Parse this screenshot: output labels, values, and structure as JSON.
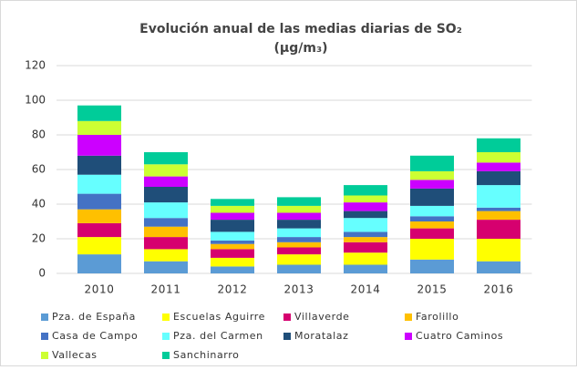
{
  "chart_data": {
    "type": "stacked_bar",
    "title": "Evolución  anual de las medias diarias de SO₂",
    "subtitle": "(µg/m₃)",
    "categories": [
      "2010",
      "2011",
      "2012",
      "2013",
      "2014",
      "2015",
      "2016"
    ],
    "series": [
      {
        "name": "Pza. de España",
        "color": "#5b9bd5",
        "values": [
          11,
          7,
          4,
          5,
          5,
          8,
          7
        ]
      },
      {
        "name": "Escuelas Aguirre",
        "color": "#ffff00",
        "values": [
          10,
          7,
          5,
          6,
          7,
          12,
          13
        ]
      },
      {
        "name": "Villaverde",
        "color": "#d6006f",
        "values": [
          8,
          7,
          5,
          4,
          6,
          6,
          11
        ]
      },
      {
        "name": "Farolillo",
        "color": "#ffc000",
        "values": [
          8,
          6,
          3,
          3,
          3,
          4,
          5
        ]
      },
      {
        "name": "Casa de Campo",
        "color": "#4472c4",
        "values": [
          9,
          5,
          2,
          3,
          3,
          3,
          2
        ]
      },
      {
        "name": "Pza. del Carmen",
        "color": "#66ffff",
        "values": [
          11,
          9,
          5,
          5,
          8,
          6,
          13
        ]
      },
      {
        "name": "Moratalaz",
        "color": "#1f4e79",
        "values": [
          11,
          9,
          7,
          5,
          4,
          10,
          8
        ]
      },
      {
        "name": "Cuatro Caminos",
        "color": "#cc00ff",
        "values": [
          12,
          6,
          4,
          4,
          5,
          5,
          5
        ]
      },
      {
        "name": "Vallecas",
        "color": "#ccff33",
        "values": [
          8,
          7,
          4,
          4,
          4,
          5,
          6
        ]
      },
      {
        "name": "Sanchinarro",
        "color": "#00cc99",
        "values": [
          9,
          7,
          4,
          5,
          6,
          9,
          8
        ]
      }
    ],
    "ylim": [
      0,
      120
    ],
    "yticks": [
      0,
      20,
      40,
      60,
      80,
      100,
      120
    ],
    "grid": true,
    "legend": "bottom"
  }
}
